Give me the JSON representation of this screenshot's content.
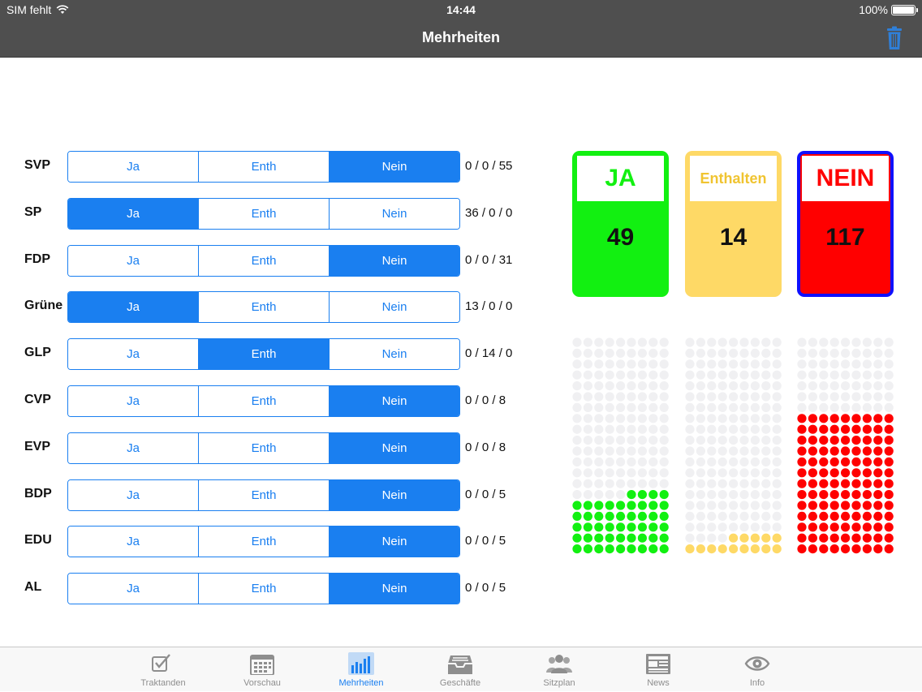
{
  "status": {
    "carrier": "SIM fehlt",
    "time": "14:44",
    "battery": "100%"
  },
  "nav": {
    "title": "Mehrheiten"
  },
  "options": {
    "yes": "Ja",
    "abstain": "Enth",
    "no": "Nein"
  },
  "parties": [
    {
      "name": "SVP",
      "selected": "no",
      "count": "0 / 0 / 55"
    },
    {
      "name": "SP",
      "selected": "yes",
      "count": "36 / 0 / 0"
    },
    {
      "name": "FDP",
      "selected": "no",
      "count": "0 / 0 / 31"
    },
    {
      "name": "Grüne",
      "selected": "yes",
      "count": "13 / 0 / 0"
    },
    {
      "name": "GLP",
      "selected": "abstain",
      "count": "0 / 14 / 0"
    },
    {
      "name": "CVP",
      "selected": "no",
      "count": "0 / 0 / 8"
    },
    {
      "name": "EVP",
      "selected": "no",
      "count": "0 / 0 / 8"
    },
    {
      "name": "BDP",
      "selected": "no",
      "count": "0 / 0 / 5"
    },
    {
      "name": "EDU",
      "selected": "no",
      "count": "0 / 0 / 5"
    },
    {
      "name": "AL",
      "selected": "no",
      "count": "0 / 0 / 5"
    }
  ],
  "totals": {
    "yes": {
      "label": "JA",
      "value": 49,
      "color": "#12f011"
    },
    "abstain": {
      "label": "Enthalten",
      "value": 14,
      "color": "#fed966"
    },
    "no": {
      "label": "NEIN",
      "value": 117,
      "color": "#ff0000"
    }
  },
  "seat_capacity": 180,
  "colors": {
    "accent": "#1a7ff0",
    "no_border": "#1010ff",
    "empty_dot": "#f0f0f2",
    "abstain_text": "#f0c431"
  },
  "tabs": [
    {
      "label": "Traktanden",
      "icon": "checkbox-icon",
      "active": false
    },
    {
      "label": "Vorschau",
      "icon": "calendar-icon",
      "active": false
    },
    {
      "label": "Mehrheiten",
      "icon": "bar-chart-icon",
      "active": true
    },
    {
      "label": "Geschäfte",
      "icon": "inbox-icon",
      "active": false
    },
    {
      "label": "Sitzplan",
      "icon": "people-icon",
      "active": false
    },
    {
      "label": "News",
      "icon": "newspaper-icon",
      "active": false
    },
    {
      "label": "Info",
      "icon": "eye-icon",
      "active": false
    }
  ]
}
